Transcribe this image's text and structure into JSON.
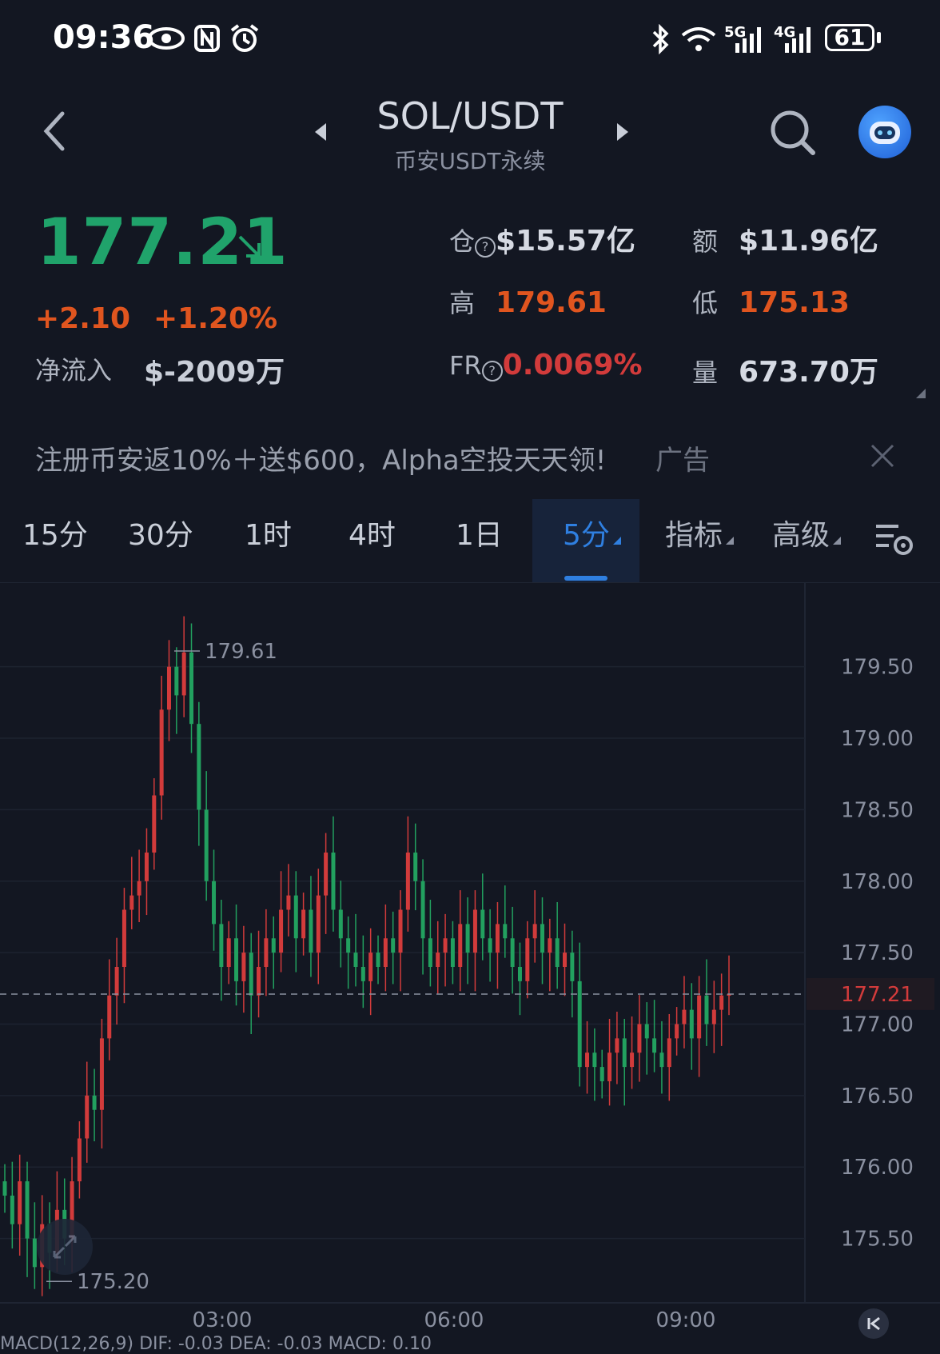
{
  "status_bar": {
    "time": "09:36",
    "battery": "61",
    "icons": [
      "eye-icon",
      "nfc-icon",
      "alarm-icon",
      "bluetooth-icon",
      "wifi-icon",
      "signal-5g-icon",
      "signal-4g-icon"
    ],
    "net1": "5G",
    "net2": "4G"
  },
  "header": {
    "title": "SOL/USDT",
    "subtitle": "币安USDT永续"
  },
  "price": {
    "last": "177.21",
    "change_abs": "+2.10",
    "change_pct": "+1.20%",
    "netflow_label": "净流入",
    "netflow_value": "$-2009万"
  },
  "stats": {
    "oi_label": "仓",
    "oi_value": "$15.57亿",
    "turnover_label": "额",
    "turnover_value": "$11.96亿",
    "high_label": "高",
    "high_value": "179.61",
    "low_label": "低",
    "low_value": "175.13",
    "fr_label": "FR",
    "fr_value": "0.0069%",
    "volume_label": "量",
    "volume_value": "673.70万"
  },
  "ad": {
    "text": "注册币安返10%＋送$600，Alpha空投天天领!",
    "tag": "广告"
  },
  "tabs": [
    "15分",
    "30分",
    "1时",
    "4时",
    "1日",
    "5分",
    "指标",
    "高级"
  ],
  "active_tab": "5分",
  "colors": {
    "background": "#131722",
    "up": "#d23b3b",
    "down": "#22a05f",
    "price_green": "#20a36b",
    "accent": "#2f7fe0"
  },
  "chart_data": {
    "type": "candlestick",
    "interval": "5分",
    "x_ticks": [
      "03:00",
      "06:00",
      "09:00"
    ],
    "y_ticks": [
      "179.50",
      "179.00",
      "178.50",
      "178.00",
      "177.50",
      "177.00",
      "176.50",
      "176.00",
      "175.50"
    ],
    "ylim": [
      175.05,
      179.75
    ],
    "last_price_label": "177.21",
    "last_price": 177.21,
    "high_marker": "179.61",
    "low_marker": "175.20",
    "closes": [
      175.8,
      175.6,
      175.9,
      175.5,
      175.3,
      175.6,
      175.4,
      175.7,
      175.5,
      175.9,
      176.2,
      176.5,
      176.4,
      176.9,
      177.2,
      177.4,
      177.8,
      177.9,
      178.0,
      178.2,
      178.6,
      179.2,
      179.5,
      179.3,
      179.6,
      179.1,
      178.5,
      178.0,
      177.7,
      177.4,
      177.6,
      177.3,
      177.5,
      177.2,
      177.4,
      177.6,
      177.5,
      177.8,
      177.9,
      177.6,
      177.8,
      177.5,
      177.9,
      178.2,
      177.8,
      177.6,
      177.5,
      177.4,
      177.3,
      177.5,
      177.4,
      177.6,
      177.5,
      177.8,
      178.2,
      178.0,
      177.6,
      177.4,
      177.5,
      177.6,
      177.4,
      177.7,
      177.5,
      177.8,
      177.6,
      177.5,
      177.7,
      177.6,
      177.4,
      177.3,
      177.6,
      177.7,
      177.5,
      177.6,
      177.4,
      177.5,
      177.3,
      176.7,
      176.8,
      176.7,
      176.6,
      176.8,
      176.9,
      176.7,
      176.8,
      177.0,
      176.9,
      176.8,
      176.7,
      176.9,
      177.0,
      177.1,
      176.9,
      177.2,
      177.0,
      177.1,
      177.2,
      177.21
    ]
  },
  "indicators": "MACD(12,26,9) DIF: -0.03 DEA: -0.03 MACD: 0.10"
}
